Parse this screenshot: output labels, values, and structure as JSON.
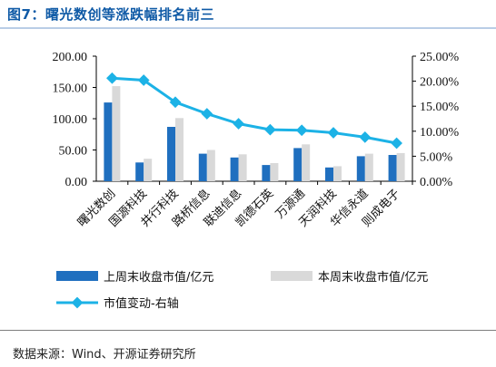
{
  "header": {
    "title": "图7：曙光数创等涨跌幅排名前三"
  },
  "footer": {
    "source": "数据来源：Wind、开源证券研究所"
  },
  "colors": {
    "bar_last": "#1f6fbf",
    "bar_this": "#d9d9d9",
    "line": "#1cb2e6",
    "title": "#0f5aa6"
  },
  "chart_data": {
    "type": "bar",
    "categories": [
      "曙光数创",
      "国源科技",
      "井行科技",
      "路桥信息",
      "联迪信息",
      "凯德石英",
      "万源通",
      "天润科技",
      "华信永道",
      "则成电子"
    ],
    "series": [
      {
        "name": "上周末收盘市值/亿元",
        "type": "bar",
        "axis": "left",
        "values": [
          126,
          30,
          87,
          44,
          38,
          26,
          53,
          22,
          40,
          42
        ]
      },
      {
        "name": "本周末收盘市值/亿元",
        "type": "bar",
        "axis": "left",
        "values": [
          152,
          36,
          101,
          50,
          43,
          29,
          59,
          24,
          44,
          45
        ]
      },
      {
        "name": "市值变动-右轴",
        "type": "line",
        "axis": "right",
        "values": [
          20.6,
          20.2,
          15.8,
          13.5,
          11.5,
          10.3,
          10.2,
          9.7,
          8.8,
          7.6
        ]
      }
    ],
    "y_left": {
      "min": 0,
      "max": 200,
      "ticks": [
        "0.00",
        "50.00",
        "100.00",
        "150.00",
        "200.00"
      ]
    },
    "y_right": {
      "min": 0,
      "max": 25,
      "ticks": [
        "0.00%",
        "5.00%",
        "10.00%",
        "15.00%",
        "20.00%",
        "25.00%"
      ]
    },
    "grid": false,
    "legend_position": "bottom"
  }
}
